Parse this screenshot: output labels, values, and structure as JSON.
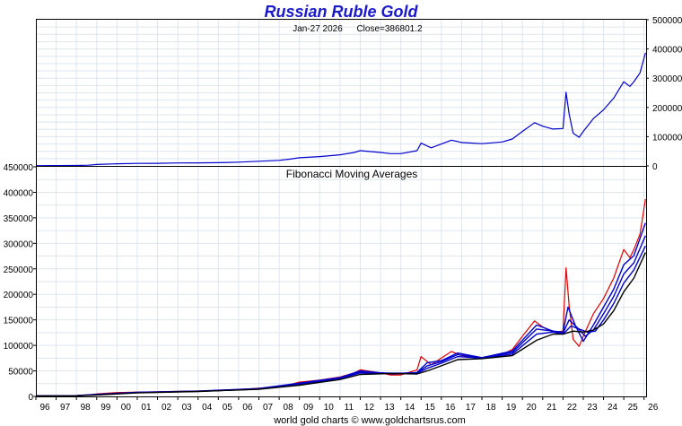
{
  "chart_data": [
    {
      "type": "line",
      "title": "Russian Ruble Gold",
      "subtitle_date": "Jan-27  2026",
      "subtitle_close": "Close=386801.2",
      "y_ticks": [
        "500000",
        "400000",
        "300000",
        "200000",
        "100000",
        "0"
      ],
      "ylim": [
        0,
        500000
      ],
      "x_ticks": [
        "96",
        "97",
        "98",
        "99",
        "00",
        "01",
        "02",
        "03",
        "04",
        "05",
        "06",
        "07",
        "08",
        "09",
        "10",
        "11",
        "12",
        "13",
        "14",
        "15",
        "16",
        "17",
        "18",
        "19",
        "20",
        "21",
        "22",
        "23",
        "24",
        "25",
        "26"
      ],
      "xlim": [
        1996.0,
        2026.1
      ],
      "series": [
        {
          "color": "#0000cc",
          "x": [
            1996.0,
            1997.0,
            1998.0,
            1998.6,
            1999.0,
            2000.0,
            2001.0,
            2002.0,
            2003.0,
            2004.0,
            2005.0,
            2006.0,
            2007.0,
            2008.0,
            2008.5,
            2009.0,
            2010.0,
            2011.0,
            2011.7,
            2012.0,
            2013.0,
            2013.5,
            2014.0,
            2014.8,
            2015.0,
            2015.5,
            2016.0,
            2016.5,
            2017.0,
            2018.0,
            2019.0,
            2019.5,
            2020.0,
            2020.6,
            2021.0,
            2021.5,
            2022.0,
            2022.15,
            2022.3,
            2022.5,
            2022.8,
            2023.0,
            2023.5,
            2024.0,
            2024.5,
            2025.0,
            2025.3,
            2025.5,
            2025.8,
            2026.07
          ],
          "y": [
            1000,
            1300,
            1600,
            2500,
            5000,
            7500,
            8500,
            9000,
            10000,
            10500,
            11000,
            13000,
            16000,
            19000,
            23000,
            28000,
            32000,
            38000,
            46000,
            52000,
            46000,
            42000,
            42000,
            52000,
            78000,
            62000,
            75000,
            88000,
            80000,
            76000,
            82000,
            92000,
            118000,
            148000,
            136000,
            126000,
            128000,
            252000,
            178000,
            112000,
            98000,
            118000,
            162000,
            192000,
            232000,
            288000,
            272000,
            288000,
            318000,
            386801
          ]
        }
      ]
    },
    {
      "type": "line",
      "title": "Fibonacci Moving Averages",
      "y_ticks": [
        "450000",
        "400000",
        "350000",
        "300000",
        "250000",
        "200000",
        "150000",
        "100000",
        "50000",
        "0"
      ],
      "ylim": [
        0,
        450000
      ],
      "x_ticks": [
        "96",
        "97",
        "98",
        "99",
        "00",
        "01",
        "02",
        "03",
        "04",
        "05",
        "06",
        "07",
        "08",
        "09",
        "10",
        "11",
        "12",
        "13",
        "14",
        "15",
        "16",
        "17",
        "18",
        "19",
        "20",
        "21",
        "22",
        "23",
        "24",
        "25",
        "26"
      ],
      "xlim": [
        1996.0,
        2026.1
      ],
      "series": [
        {
          "color": "#e00000",
          "x": [
            1996.0,
            1997.0,
            1998.0,
            1998.6,
            1999.0,
            2000.0,
            2001.0,
            2002.0,
            2003.0,
            2004.0,
            2005.0,
            2006.0,
            2007.0,
            2008.0,
            2008.5,
            2009.0,
            2010.0,
            2011.0,
            2011.7,
            2012.0,
            2013.0,
            2013.5,
            2014.0,
            2014.8,
            2015.0,
            2015.5,
            2016.0,
            2016.5,
            2017.0,
            2018.0,
            2019.0,
            2019.5,
            2020.0,
            2020.6,
            2021.0,
            2021.5,
            2022.0,
            2022.15,
            2022.3,
            2022.5,
            2022.8,
            2023.0,
            2023.5,
            2024.0,
            2024.5,
            2025.0,
            2025.3,
            2025.5,
            2025.8,
            2026.07
          ],
          "y": [
            1000,
            1300,
            1600,
            2500,
            5000,
            7500,
            8500,
            9000,
            10000,
            10500,
            11000,
            13000,
            16000,
            19000,
            23000,
            28000,
            32000,
            38000,
            46000,
            52000,
            46000,
            42000,
            42000,
            52000,
            78000,
            62000,
            75000,
            88000,
            80000,
            76000,
            82000,
            92000,
            118000,
            148000,
            136000,
            126000,
            128000,
            252000,
            178000,
            112000,
            98000,
            118000,
            162000,
            192000,
            232000,
            288000,
            272000,
            288000,
            318000,
            386801
          ]
        },
        {
          "color": "#0000cc",
          "x": [
            1996.0,
            1998.0,
            1999.0,
            2001.0,
            2004.0,
            2007.0,
            2009.0,
            2011.0,
            2012.0,
            2013.6,
            2014.8,
            2015.3,
            2016.0,
            2016.8,
            2018.0,
            2019.5,
            2020.7,
            2021.5,
            2022.0,
            2022.25,
            2022.6,
            2023.0,
            2023.5,
            2024.0,
            2024.5,
            2025.0,
            2025.5,
            2026.07
          ],
          "y": [
            1000,
            1500,
            4000,
            8000,
            10300,
            15500,
            26000,
            37000,
            50000,
            44000,
            47000,
            66000,
            70000,
            85000,
            76000,
            89000,
            140000,
            128000,
            126000,
            175000,
            140000,
            108000,
            140000,
            175000,
            210000,
            258000,
            276000,
            340000
          ]
        },
        {
          "color": "#0000cc",
          "x": [
            1996.0,
            1998.0,
            1999.0,
            2001.0,
            2004.0,
            2007.0,
            2009.0,
            2011.0,
            2012.0,
            2013.6,
            2014.8,
            2015.3,
            2016.0,
            2016.8,
            2018.0,
            2019.5,
            2020.7,
            2021.5,
            2022.0,
            2022.3,
            2022.7,
            2023.1,
            2023.5,
            2024.0,
            2024.5,
            2025.0,
            2025.5,
            2026.07
          ],
          "y": [
            1000,
            1400,
            3600,
            7700,
            10100,
            15000,
            25000,
            36000,
            48000,
            45000,
            46000,
            60000,
            68000,
            82000,
            76000,
            86000,
            132000,
            128000,
            124000,
            150000,
            135000,
            118000,
            130000,
            162000,
            196000,
            240000,
            262000,
            315000
          ]
        },
        {
          "color": "#0000cc",
          "x": [
            1996.0,
            1998.0,
            1999.0,
            2001.0,
            2004.0,
            2007.0,
            2009.0,
            2011.0,
            2012.0,
            2013.6,
            2014.8,
            2015.3,
            2016.0,
            2016.8,
            2018.0,
            2019.5,
            2020.7,
            2021.5,
            2022.0,
            2022.4,
            2022.8,
            2023.2,
            2023.6,
            2024.0,
            2024.5,
            2025.0,
            2025.5,
            2026.07
          ],
          "y": [
            1000,
            1300,
            3200,
            7300,
            9900,
            14500,
            24000,
            35000,
            46000,
            45500,
            45500,
            55000,
            65000,
            78000,
            75000,
            83000,
            122000,
            126000,
            122000,
            138000,
            132000,
            126000,
            128000,
            150000,
            182000,
            222000,
            248000,
            295000
          ]
        },
        {
          "color": "#000000",
          "x": [
            1996.0,
            1998.0,
            1999.0,
            2001.0,
            2004.0,
            2007.0,
            2009.0,
            2011.0,
            2012.0,
            2013.6,
            2014.8,
            2015.3,
            2016.0,
            2016.8,
            2018.0,
            2019.5,
            2020.7,
            2021.5,
            2022.0,
            2022.5,
            2023.0,
            2023.5,
            2024.0,
            2024.5,
            2025.0,
            2025.5,
            2026.07
          ],
          "y": [
            1000,
            1200,
            2800,
            6800,
            9600,
            14000,
            22000,
            33000,
            43000,
            45000,
            44000,
            50000,
            60000,
            72000,
            74000,
            80000,
            110000,
            122000,
            122000,
            128000,
            126000,
            130000,
            142000,
            168000,
            205000,
            232000,
            282000
          ]
        }
      ]
    }
  ],
  "footer": "world gold charts © www.goldchartsrus.com"
}
